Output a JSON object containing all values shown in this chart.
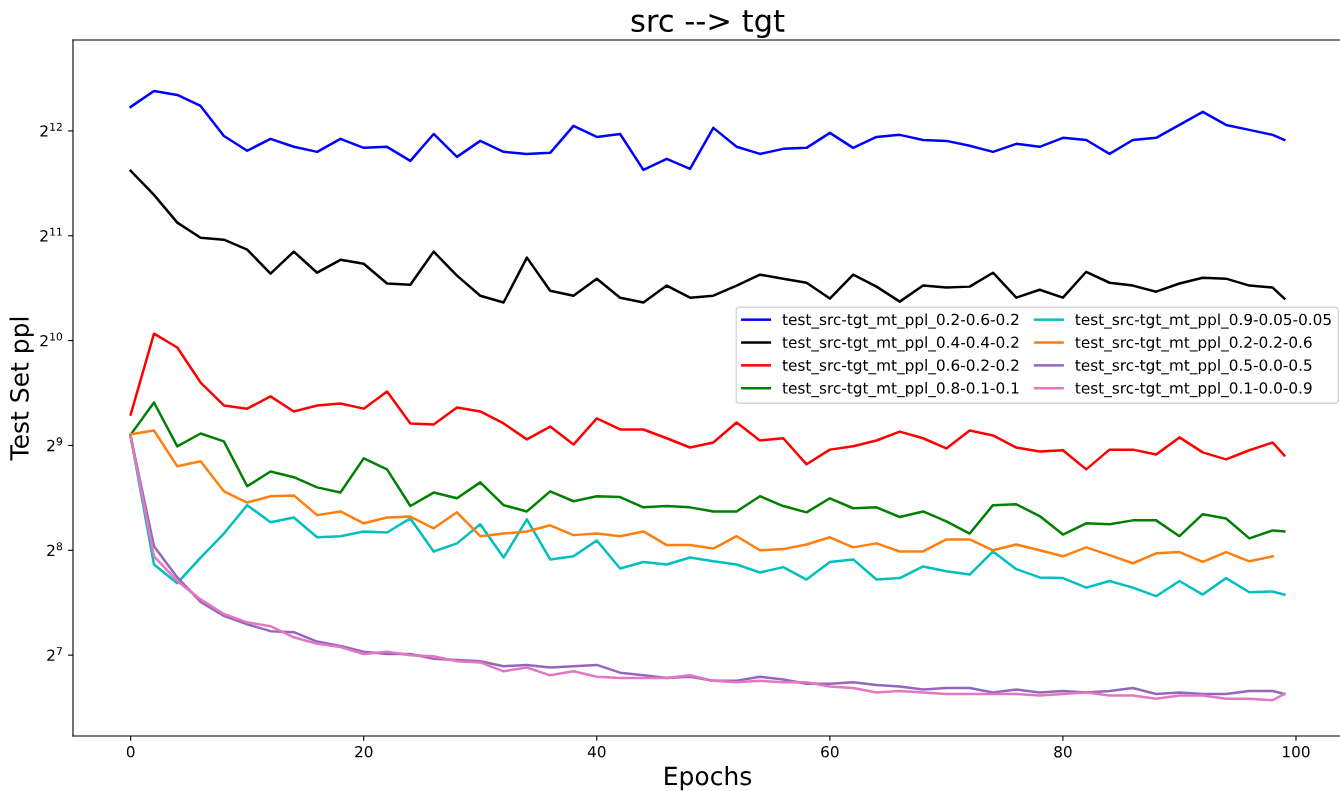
{
  "chart_data": {
    "type": "line",
    "title": "src --> tgt",
    "xlabel": "Epochs",
    "ylabel": "Test Set ppl",
    "x": [
      0,
      2,
      4,
      6,
      8,
      10,
      12,
      14,
      16,
      18,
      20,
      22,
      24,
      26,
      28,
      30,
      32,
      34,
      36,
      38,
      40,
      42,
      44,
      46,
      48,
      50,
      52,
      54,
      56,
      58,
      60,
      62,
      64,
      66,
      68,
      70,
      72,
      74,
      76,
      78,
      80,
      82,
      84,
      86,
      88,
      90,
      92,
      94,
      96,
      98,
      99
    ],
    "series": [
      {
        "name": "test_src-tgt_mt_ppl_0.2-0.6-0.2",
        "color": "#0000ff",
        "values": [
          4800,
          5334,
          5194,
          4830,
          3961,
          3592,
          3887,
          3687,
          3566,
          3887,
          3662,
          3687,
          3359,
          4014,
          3449,
          3834,
          3566,
          3518,
          3543,
          4235,
          3936,
          4014,
          3166,
          3404,
          3187,
          4178,
          3687,
          3518,
          3637,
          3662,
          4043,
          3662,
          3936,
          3990,
          3858,
          3834,
          3711,
          3566,
          3760,
          3687,
          3912,
          3858,
          3518,
          3858,
          3912,
          4260,
          4645,
          4260,
          4123,
          3990,
          3858
        ]
      },
      {
        "name": "test_src-tgt_mt_ppl_0.4-0.4-0.2",
        "color": "#000000",
        "values": [
          3146,
          2683,
          2233,
          2021,
          1995,
          1868,
          1594,
          1844,
          1604,
          1747,
          1702,
          1493,
          1482,
          1844,
          1573,
          1378,
          1317,
          1772,
          1423,
          1378,
          1542,
          1360,
          1317,
          1473,
          1360,
          1378,
          1473,
          1583,
          1542,
          1501,
          1352,
          1583,
          1463,
          1325,
          1473,
          1454,
          1463,
          1604,
          1360,
          1433,
          1360,
          1614,
          1501,
          1473,
          1415,
          1493,
          1552,
          1542,
          1473,
          1454,
          1352
        ]
      },
      {
        "name": "test_src-tgt_mt_ppl_0.6-0.2-0.2",
        "color": "#ff0000",
        "values": [
          628,
          1072,
          978,
          776,
          667,
          653,
          708,
          641,
          667,
          676,
          653,
          731,
          592,
          588,
          658,
          641,
          592,
          533,
          580,
          515,
          612,
          569,
          569,
          537,
          505,
          522,
          596,
          529,
          537,
          452,
          498,
          509,
          529,
          561,
          537,
          502,
          565,
          547,
          505,
          492,
          496,
          437,
          498,
          498,
          482,
          540,
          489,
          467,
          496,
          522,
          479
        ]
      },
      {
        "name": "test_src-tgt_mt_ppl_0.8-0.1-0.1",
        "color": "#008000",
        "values": [
          550,
          680,
          509,
          554,
          526,
          391,
          431,
          415,
          388,
          375,
          470,
          437,
          343,
          375,
          361,
          401,
          345,
          331,
          378,
          354,
          366,
          364,
          340,
          343,
          340,
          331,
          331,
          366,
          343,
          329,
          361,
          338,
          340,
          319,
          331,
          310,
          286,
          345,
          347,
          321,
          284,
          306,
          304,
          312,
          312,
          281,
          325,
          316,
          277,
          292,
          290
        ]
      },
      {
        "name": "test_src-tgt_mt_ppl_0.9-0.05-0.05",
        "color": "#00bfbf",
        "values": [
          543,
          233,
          206,
          244,
          286,
          345,
          308,
          318,
          279,
          281,
          290,
          288,
          316,
          254,
          268,
          304,
          244,
          314,
          241,
          246,
          273,
          227,
          237,
          233,
          244,
          238,
          233,
          221,
          229,
          211,
          237,
          241,
          211,
          213,
          230,
          223,
          218,
          254,
          226,
          214,
          213,
          200,
          209,
          200,
          189,
          209,
          191,
          213,
          194,
          195,
          191
        ]
      },
      {
        "name": "test_src-tgt_mt_ppl_0.2-0.2-0.6",
        "color": "#ff7f0e",
        "values": [
          551,
          565,
          446,
          461,
          378,
          351,
          366,
          368,
          323,
          331,
          306,
          318,
          320,
          296,
          329,
          281,
          286,
          290,
          302,
          283,
          286,
          281,
          290,
          265,
          265,
          259,
          281,
          256,
          258,
          266,
          279,
          261,
          268,
          254,
          254,
          275,
          275,
          256,
          266,
          256,
          246,
          261,
          248,
          235,
          251,
          253,
          237,
          253,
          238,
          246,
          null
        ]
      },
      {
        "name": "test_src-tgt_mt_ppl_0.5-0.0-0.5",
        "color": "#9467bd",
        "values": [
          543,
          263,
          214,
          182,
          166,
          157,
          150,
          149,
          140,
          136,
          131,
          129,
          129,
          125,
          124,
          123,
          119,
          120,
          118,
          119,
          120,
          114,
          112,
          110,
          111,
          108,
          108,
          111,
          109,
          106,
          106,
          107,
          105,
          104,
          102,
          103,
          103,
          100,
          102,
          100,
          101,
          100,
          101,
          103,
          99,
          100,
          99,
          99,
          101,
          101,
          99
        ]
      },
      {
        "name": "test_src-tgt_mt_ppl_0.1-0.0-0.9",
        "color": "#e377c2",
        "values": [
          543,
          246,
          209,
          185,
          168,
          159,
          155,
          144,
          138,
          135,
          129,
          131,
          128,
          127,
          123,
          122,
          115,
          118,
          112,
          115,
          111,
          110,
          110,
          110,
          112,
          108,
          107,
          108,
          107,
          107,
          104,
          103,
          100,
          101,
          100,
          99,
          99,
          99,
          99,
          98,
          99,
          100,
          98,
          98,
          96,
          98,
          98,
          96,
          96,
          95,
          99
        ]
      }
    ],
    "log": "y",
    "xlim": [
      -4.95,
      103.95
    ],
    "xticks": [
      0,
      20,
      40,
      60,
      80,
      100
    ],
    "ylim": [
      75,
      7470
    ],
    "yticks": [
      {
        "value": 128,
        "label": "2$^{7}$"
      },
      {
        "value": 256,
        "label": "2$^{8}$"
      },
      {
        "value": 512,
        "label": "2$^{9}$"
      },
      {
        "value": 1024,
        "label": "2$^{10}$"
      },
      {
        "value": 2048,
        "label": "2$^{11}$"
      },
      {
        "value": 4096,
        "label": "2$^{12}$"
      }
    ],
    "grid": false,
    "legend": "right",
    "line_style": "solid",
    "marker": "none"
  }
}
